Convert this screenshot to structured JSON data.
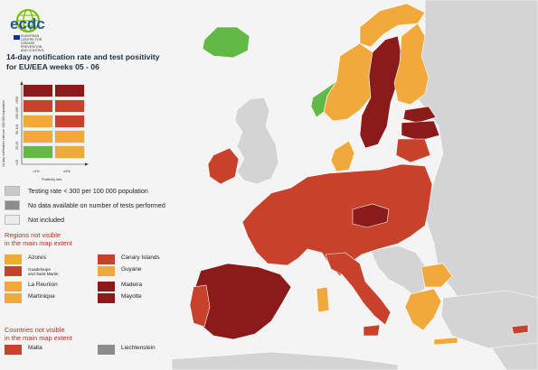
{
  "logo": {
    "wordmark": "ecdc",
    "agency_name": "EUROPEAN CENTRE FOR DISEASE PREVENTION AND CONTROL",
    "icon": "ecdc-globe-logo-icon",
    "accent": "#7ab800",
    "flag_color": "#003399"
  },
  "title": {
    "line1": "14-day notification rate and test positivity",
    "line2": "for EU/EEA weeks 05 - 06"
  },
  "legend_grid": {
    "y_axis_label": "14-day notification rate per 100 000 population",
    "x_axis_label": "Positivity rate",
    "y_ticks": [
      "<25",
      "25-49",
      "50-149",
      "150-499",
      ">500"
    ],
    "x_ticks": [
      "<4%",
      "≥4%"
    ],
    "colors": {
      "green": "#63b946",
      "orange": "#f2a93b",
      "red": "#c8412b",
      "darkred": "#8b1a1a"
    },
    "rows": [
      [
        "darkred",
        "darkred"
      ],
      [
        "red",
        "red"
      ],
      [
        "orange",
        "red"
      ],
      [
        "orange",
        "orange"
      ],
      [
        "green",
        "orange"
      ]
    ]
  },
  "status_legend": [
    {
      "label": "Testing rate < 300 per 100 000 population",
      "color": "#c9c9c9"
    },
    {
      "label": "No data available on number of tests performed",
      "color": "#8c8c8c"
    },
    {
      "label": "Not included",
      "color": "#ececec"
    }
  ],
  "regions_section": {
    "title_line1": "Regions not visible",
    "title_line2": "in the main map extent",
    "regions": [
      {
        "name": "Azores",
        "color": "#f2a93b"
      },
      {
        "name": "Guadeloupe\nand Saint Martin",
        "color": "#c8412b"
      },
      {
        "name": "La Reunion",
        "color": "#f2a93b"
      },
      {
        "name": "Martinique",
        "color": "#f2a93b"
      },
      {
        "name": "Canary Islands",
        "color": "#c8412b"
      },
      {
        "name": "Guyane",
        "color": "#f2a93b"
      },
      {
        "name": "Madeira",
        "color": "#8b1a1a"
      },
      {
        "name": "Mayotte",
        "color": "#8b1a1a"
      }
    ]
  },
  "countries_section": {
    "title_line1": "Countries not visible",
    "title_line2": "in the main map extent",
    "countries": [
      {
        "name": "Malta",
        "color": "#c8412b"
      },
      {
        "name": "Liechtenstein",
        "color": "#8c8c8c"
      }
    ]
  },
  "map_colors": {
    "water": "#f4f4f4",
    "non_eu": "#d4d4d4",
    "green": "#63b946",
    "orange": "#f2a93b",
    "red": "#c8412b",
    "darkred": "#8b1a1a"
  }
}
